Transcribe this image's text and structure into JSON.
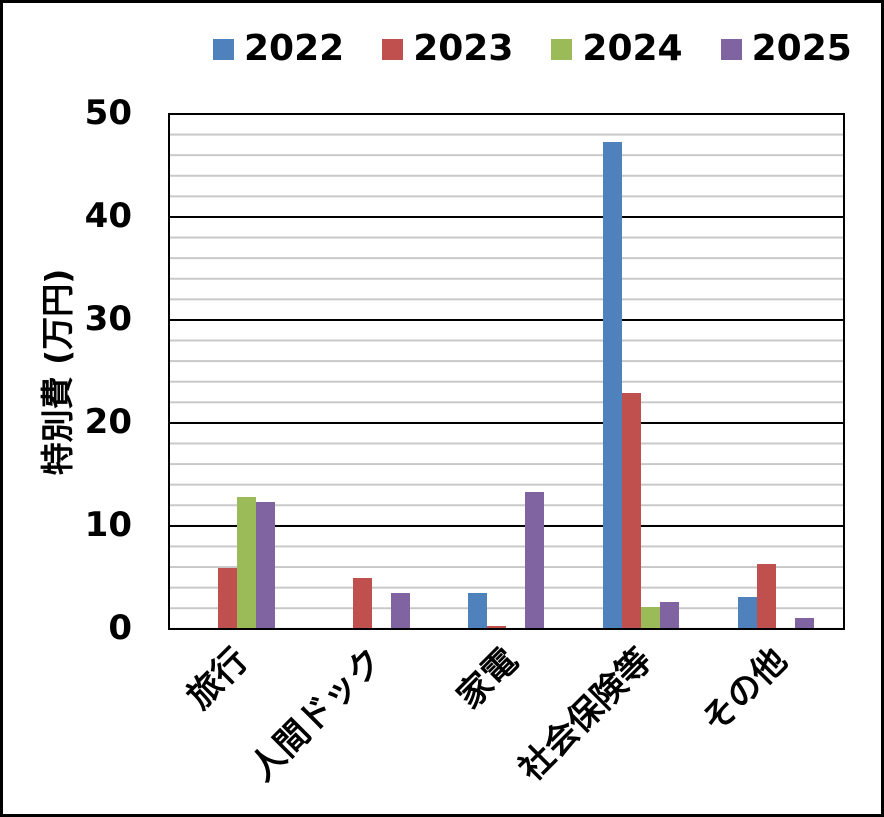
{
  "chart_data": {
    "type": "bar",
    "title": "",
    "ylabel": "特別費 (万円)",
    "xlabel": "",
    "categories": [
      "旅行",
      "人間ドック",
      "家電",
      "社会保険等",
      "その他"
    ],
    "series": [
      {
        "name": "2022",
        "color": "#4F81BD",
        "values": [
          0,
          0,
          3.4,
          47.2,
          3.0
        ]
      },
      {
        "name": "2023",
        "color": "#C0504D",
        "values": [
          5.8,
          4.9,
          0.2,
          22.8,
          6.2
        ]
      },
      {
        "name": "2024",
        "color": "#9BBB59",
        "values": [
          12.7,
          0,
          0,
          2.0,
          0
        ]
      },
      {
        "name": "2025",
        "color": "#8064A2",
        "values": [
          12.2,
          3.4,
          13.2,
          2.5,
          1.0
        ]
      }
    ],
    "ylim": [
      0,
      50
    ],
    "yticks": [
      0,
      10,
      20,
      30,
      40,
      50
    ],
    "grid": {
      "major_unit": 10,
      "minor_unit": 2,
      "major_color": "#000000",
      "minor_color": "#C8C8C8"
    },
    "legend_position": "top"
  }
}
